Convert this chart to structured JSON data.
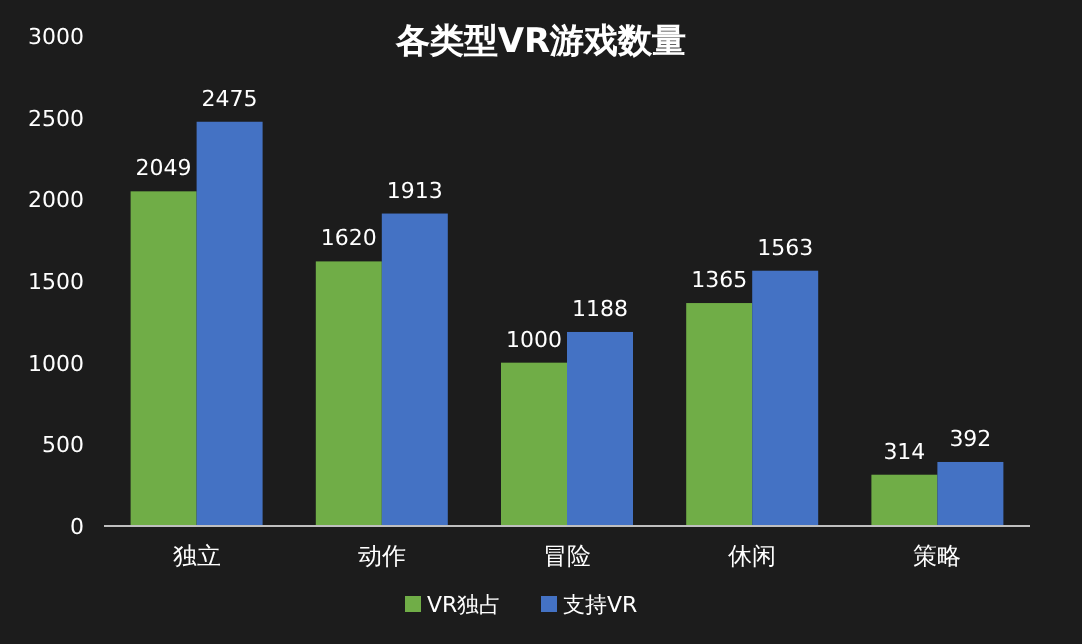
{
  "chart_data": {
    "type": "bar",
    "title": "各类型VR游戏数量",
    "categories": [
      "独立",
      "动作",
      "冒险",
      "休闲",
      "策略"
    ],
    "series": [
      {
        "name": "VR独占",
        "color": "#70ad47",
        "values": [
          2049,
          1620,
          1000,
          1365,
          314
        ]
      },
      {
        "name": "支持VR",
        "color": "#4472c4",
        "values": [
          2475,
          1913,
          1188,
          1563,
          392
        ]
      }
    ],
    "ylim": [
      0,
      3000
    ],
    "yticks": [
      0,
      500,
      1000,
      1500,
      2000,
      2500,
      3000
    ],
    "data_labels": true,
    "legend": "bottom"
  }
}
